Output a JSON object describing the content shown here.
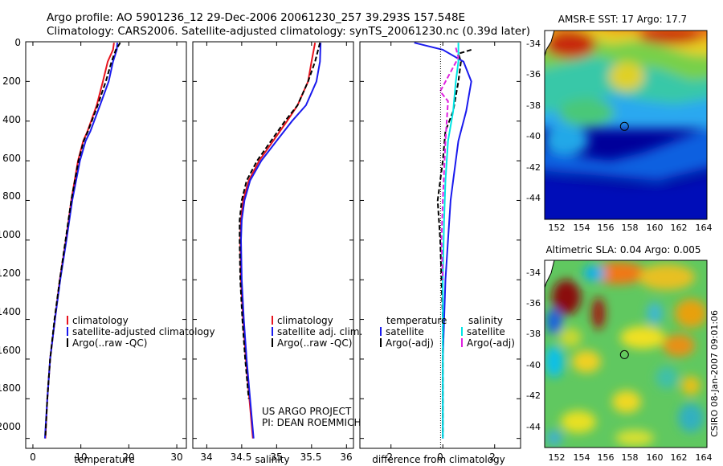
{
  "header": {
    "line1": "Argo profile: AO 5901236_12 29-Dec-2006 20061230_257 39.293S 157.548E",
    "line2": "Climatology: CARS2006. Satellite-adjusted climatology: synTS_20061230.nc (0.39d later)"
  },
  "footer": {
    "project_line1": "US ARGO PROJECT",
    "project_line2": "PI: DEAN ROEMMICH",
    "stamp": "CSIRO 08-Jan-2007 09:01:06"
  },
  "colors": {
    "climatology": "#e8141e",
    "satellite": "#1a1aee",
    "argo": "#000000",
    "salinity_satellite": "#00e5e5",
    "salinity_argo": "#e020e0"
  },
  "chart_data": [
    {
      "type": "line",
      "title": "",
      "xlabel": "temperature",
      "ylabel": "",
      "xlim": [
        -1.5,
        32
      ],
      "ylim": [
        2050,
        0
      ],
      "y_inverted": true,
      "xticks": [
        0,
        10,
        20,
        30
      ],
      "yticks": [
        0,
        200,
        400,
        600,
        800,
        1000,
        1200,
        1400,
        1600,
        1800,
        2000
      ],
      "legend": {
        "placement": "lower-middle",
        "entries": [
          "climatology",
          "satellite-adjusted climatology",
          "Argo(..raw -QC)"
        ]
      },
      "series": [
        {
          "name": "climatology",
          "color": "#e8141e",
          "style": "solid",
          "points": [
            [
              16.9,
              5
            ],
            [
              16.7,
              40
            ],
            [
              15.6,
              100
            ],
            [
              14.6,
              200
            ],
            [
              13.3,
              320
            ],
            [
              11.4,
              450
            ],
            [
              10.5,
              500
            ],
            [
              9.4,
              600
            ],
            [
              8.0,
              800
            ],
            [
              6.9,
              1000
            ],
            [
              5.6,
              1200
            ],
            [
              4.6,
              1400
            ],
            [
              3.6,
              1600
            ],
            [
              3.0,
              1800
            ],
            [
              2.6,
              2000
            ]
          ]
        },
        {
          "name": "satellite-adjusted climatology",
          "color": "#1a1aee",
          "style": "solid",
          "points": [
            [
              17.6,
              5
            ],
            [
              17.5,
              40
            ],
            [
              16.7,
              100
            ],
            [
              15.8,
              200
            ],
            [
              14.0,
              320
            ],
            [
              12.0,
              450
            ],
            [
              11.0,
              500
            ],
            [
              9.8,
              600
            ],
            [
              8.2,
              800
            ],
            [
              7.0,
              1000
            ],
            [
              5.7,
              1200
            ],
            [
              4.6,
              1400
            ],
            [
              3.6,
              1600
            ],
            [
              3.0,
              1800
            ],
            [
              2.5,
              2000
            ]
          ]
        },
        {
          "name": "Argo(..raw -QC)",
          "color": "#000000",
          "style": "dashed",
          "points": [
            [
              18.2,
              5
            ],
            [
              17.3,
              40
            ],
            [
              16.4,
              100
            ],
            [
              15.2,
              200
            ],
            [
              13.5,
              320
            ],
            [
              11.5,
              450
            ],
            [
              10.6,
              500
            ],
            [
              9.5,
              600
            ],
            [
              8.0,
              800
            ],
            [
              6.8,
              1000
            ],
            [
              5.6,
              1200
            ],
            [
              4.5,
              1400
            ],
            [
              3.6,
              1600
            ],
            [
              3.0,
              1800
            ],
            [
              2.6,
              1990
            ]
          ]
        }
      ]
    },
    {
      "type": "line",
      "title": "",
      "xlabel": "salinity",
      "ylabel": "",
      "xlim": [
        33.8,
        36.1
      ],
      "ylim": [
        2050,
        0
      ],
      "y_inverted": true,
      "xticks": [
        34,
        34.5,
        35,
        35.5,
        36
      ],
      "legend": {
        "placement": "lower-right",
        "entries": [
          "climatology",
          "satellite adj. clim.",
          "Argo(..raw -QC)"
        ]
      },
      "series": [
        {
          "name": "climatology",
          "color": "#e8141e",
          "style": "solid",
          "points": [
            [
              35.55,
              5
            ],
            [
              35.5,
              100
            ],
            [
              35.45,
              200
            ],
            [
              35.3,
              320
            ],
            [
              35.15,
              400
            ],
            [
              34.95,
              500
            ],
            [
              34.75,
              600
            ],
            [
              34.6,
              700
            ],
            [
              34.52,
              800
            ],
            [
              34.49,
              900
            ],
            [
              34.48,
              1000
            ],
            [
              34.49,
              1200
            ],
            [
              34.52,
              1400
            ],
            [
              34.56,
              1600
            ],
            [
              34.61,
              1800
            ],
            [
              34.66,
              2000
            ]
          ]
        },
        {
          "name": "satellite adj. clim.",
          "color": "#1a1aee",
          "style": "solid",
          "points": [
            [
              35.63,
              5
            ],
            [
              35.62,
              100
            ],
            [
              35.57,
              200
            ],
            [
              35.42,
              320
            ],
            [
              35.22,
              400
            ],
            [
              35.0,
              500
            ],
            [
              34.78,
              600
            ],
            [
              34.62,
              700
            ],
            [
              34.54,
              800
            ],
            [
              34.5,
              900
            ],
            [
              34.49,
              1000
            ],
            [
              34.5,
              1200
            ],
            [
              34.53,
              1400
            ],
            [
              34.57,
              1600
            ],
            [
              34.62,
              1800
            ],
            [
              34.67,
              2000
            ]
          ]
        },
        {
          "name": "Argo(..raw -QC)",
          "color": "#000000",
          "style": "dashed",
          "points": [
            [
              35.62,
              5
            ],
            [
              35.55,
              100
            ],
            [
              35.45,
              200
            ],
            [
              35.3,
              320
            ],
            [
              35.12,
              400
            ],
            [
              34.92,
              500
            ],
            [
              34.72,
              600
            ],
            [
              34.57,
              700
            ],
            [
              34.5,
              800
            ],
            [
              34.47,
              900
            ],
            [
              34.47,
              1000
            ],
            [
              34.48,
              1200
            ],
            [
              34.51,
              1400
            ],
            [
              34.55,
              1600
            ],
            [
              34.6,
              1800
            ]
          ]
        }
      ]
    },
    {
      "type": "line",
      "title": "",
      "xlabel": "difference from climatology",
      "ylabel": "",
      "xlim": [
        -3.2,
        3.0
      ],
      "ylim": [
        2050,
        0
      ],
      "y_inverted": true,
      "xticks": [
        -2,
        0,
        2
      ],
      "legend": {
        "placement": "lower-middle",
        "columns": [
          "temperature",
          "salinity"
        ],
        "entries": [
          "satellite",
          "Argo(-adj)",
          "satellite",
          "Argo(-adj)"
        ]
      },
      "series": [
        {
          "name": "temperature satellite",
          "color": "#1a1aee",
          "style": "solid",
          "points": [
            [
              -1.1,
              5
            ],
            [
              0,
              40
            ],
            [
              0.8,
              100
            ],
            [
              1.1,
              200
            ],
            [
              0.9,
              350
            ],
            [
              0.6,
              500
            ],
            [
              0.4,
              700
            ],
            [
              0.3,
              800
            ],
            [
              0.2,
              1000
            ],
            [
              0.1,
              1200
            ],
            [
              0,
              1600
            ],
            [
              0,
              2000
            ]
          ]
        },
        {
          "name": "temperature Argo(-adj)",
          "color": "#000000",
          "style": "dashed",
          "points": [
            [
              1.1,
              40
            ],
            [
              0.6,
              60
            ],
            [
              0.7,
              100
            ],
            [
              0.6,
              200
            ],
            [
              0.4,
              350
            ],
            [
              0.1,
              450
            ],
            [
              0,
              600
            ],
            [
              -0.2,
              800
            ],
            [
              -0.1,
              1000
            ],
            [
              0,
              1400
            ],
            [
              0,
              1990
            ]
          ]
        },
        {
          "name": "salinity satellite",
          "color": "#00e5e5",
          "style": "solid",
          "points": [
            [
              0.6,
              5
            ],
            [
              0.6,
              100
            ],
            [
              0.5,
              200
            ],
            [
              0.4,
              350
            ],
            [
              0.2,
              500
            ],
            [
              0.1,
              700
            ],
            [
              0.05,
              900
            ],
            [
              0,
              1200
            ],
            [
              0,
              2000
            ]
          ]
        },
        {
          "name": "salinity Argo(-adj)",
          "color": "#e020e0",
          "style": "dashed",
          "points": [
            [
              0.5,
              30
            ],
            [
              0.6,
              80
            ],
            [
              -0.1,
              250
            ],
            [
              0.2,
              300
            ],
            [
              0.1,
              500
            ],
            [
              0,
              800
            ],
            [
              -0.05,
              1000
            ],
            [
              0,
              1200
            ]
          ]
        }
      ]
    },
    {
      "type": "heatmap",
      "title": "AMSR-E SST: 17 Argo: 17.7",
      "xlim": [
        151,
        164.3
      ],
      "ylim": [
        -45.5,
        -33.3
      ],
      "xticks": [
        152,
        154,
        156,
        158,
        160,
        162,
        164
      ],
      "yticks": [
        -34,
        -36,
        -38,
        -40,
        -42,
        -44
      ],
      "marker": {
        "lon": 157.548,
        "lat": -39.293
      }
    },
    {
      "type": "heatmap",
      "title": "Altimetric SLA: 0.04 Argo: 0.005",
      "xlim": [
        151,
        164.3
      ],
      "ylim": [
        -45.5,
        -33.3
      ],
      "xticks": [
        152,
        154,
        156,
        158,
        160,
        162,
        164
      ],
      "yticks": [
        -34,
        -36,
        -38,
        -40,
        -42,
        -44
      ],
      "marker": {
        "lon": 157.548,
        "lat": -39.293
      }
    }
  ]
}
